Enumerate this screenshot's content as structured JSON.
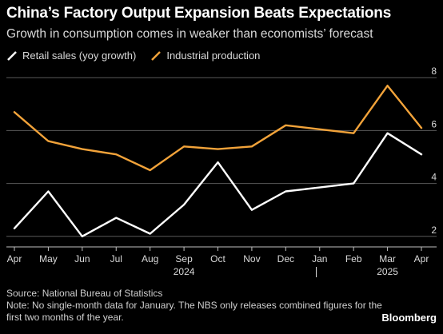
{
  "header": {
    "title": "China’s Factory Output Expansion Beats Expectations",
    "subtitle": "Growth in consumption comes in weaker than economists’ forecast"
  },
  "legend": [
    {
      "label": "Retail sales (yoy growth)",
      "color": "#ffffff"
    },
    {
      "label": "Industrial production",
      "color": "#f2a33a"
    }
  ],
  "footer": {
    "source": "Source: National Bureau of Statistics",
    "note": "Note: No single-month data for January. The NBS only releases combined figures for the first two months of the year."
  },
  "brand": "Bloomberg",
  "chart_data": {
    "type": "line",
    "title": "China’s Factory Output Expansion Beats Expectations",
    "subtitle": "Growth in consumption comes in weaker than economists’ forecast",
    "categories": [
      "Apr",
      "May",
      "Jun",
      "Jul",
      "Aug",
      "Sep",
      "Oct",
      "Nov",
      "Dec",
      "Jan",
      "Feb",
      "Mar",
      "Apr"
    ],
    "year_labels": [
      {
        "label": "2024",
        "category_index": 5
      },
      {
        "label": "2025",
        "category_index": 11
      }
    ],
    "year_divider_after_index": 8.9,
    "series": [
      {
        "name": "Retail sales (yoy growth)",
        "color": "#ffffff",
        "values": [
          2.3,
          3.7,
          2.0,
          2.7,
          2.1,
          3.2,
          4.8,
          3.0,
          3.7,
          3.85,
          4.0,
          5.9,
          5.1
        ]
      },
      {
        "name": "Industrial production",
        "color": "#f2a33a",
        "values": [
          6.7,
          5.6,
          5.3,
          5.1,
          4.5,
          5.4,
          5.3,
          5.4,
          6.2,
          6.05,
          5.9,
          7.7,
          6.1
        ]
      }
    ],
    "ylim": [
      1.6,
      8.4
    ],
    "yticks": [
      2,
      4,
      6,
      8
    ],
    "y_axis_side": "right",
    "grid": true
  }
}
